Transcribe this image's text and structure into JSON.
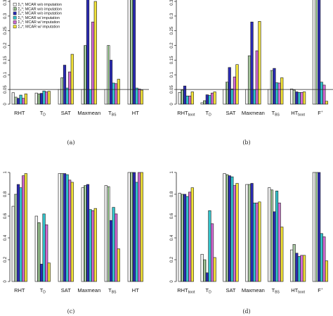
{
  "colors": {
    "axis": "#222222",
    "bar_outline": "#1a1a1a",
    "reference_line": "#222222"
  },
  "legend": {
    "items": [
      {
        "label": "Σ₁*; MCAR w/o imputation",
        "color": "#f4f4f4",
        "pattern": "plain"
      },
      {
        "label": "Σ₁*; MCAR w/o imputation",
        "color": "#4a8a3c",
        "pattern": "stripes"
      },
      {
        "label": "Σ₁*; MCAR w/o imputation",
        "color": "#2b2bb5",
        "pattern": "plain"
      },
      {
        "label": "Σ₁*; MCAR w/ imputation",
        "color": "#33c4cc",
        "pattern": "plain"
      },
      {
        "label": "Σ₂*; MCAR w/ imputation",
        "color": "#d26ad4",
        "pattern": "plain"
      },
      {
        "label": "Σ₃*; MCAR w/ imputation",
        "color": "#f2e33a",
        "pattern": "plain"
      }
    ]
  },
  "chart_data": [
    {
      "panel": "(a)",
      "type": "bar",
      "categories": [
        {
          "main": "RHT",
          "sub": "",
          "sup": ""
        },
        {
          "main": "T",
          "sub": "D",
          "sup": ""
        },
        {
          "main": "SAT",
          "sub": "",
          "sup": ""
        },
        {
          "main": "Maxmean",
          "sub": "",
          "sup": ""
        },
        {
          "main": "T",
          "sub": "BS",
          "sup": ""
        },
        {
          "main": "HT",
          "sub": "",
          "sup": ""
        }
      ],
      "values": [
        [
          0.039,
          0.024,
          0.02,
          0.031,
          0.02,
          0.035
        ],
        [
          0.038,
          0.035,
          0.037,
          0.045,
          0.042,
          0.044
        ],
        [
          0.05,
          0.09,
          0.133,
          0.055,
          0.11,
          0.17
        ],
        [
          0.05,
          0.2,
          0.36,
          0.05,
          0.28,
          0.35
        ],
        [
          0.05,
          0.2,
          0.15,
          0.072,
          0.07,
          0.085
        ],
        [
          0.36,
          0.36,
          0.36,
          0.055,
          0.052,
          0.048
        ]
      ],
      "yticks": [
        "0",
        "0.05",
        "0.1",
        "0.15",
        "0.2",
        "0.25",
        "0.3",
        "0.35"
      ],
      "ylim": [
        0,
        0.36
      ],
      "reference_line": 0.05,
      "show_legend": true
    },
    {
      "panel": "(b)",
      "type": "bar",
      "categories": [
        {
          "main": "RHT",
          "sub": "boot",
          "sup": ""
        },
        {
          "main": "T",
          "sub": "D",
          "sup": ""
        },
        {
          "main": "SAT",
          "sub": "",
          "sup": ""
        },
        {
          "main": "Maxmean",
          "sub": "",
          "sup": ""
        },
        {
          "main": "T",
          "sub": "BS",
          "sup": ""
        },
        {
          "main": "HT",
          "sub": "boot",
          "sup": ""
        },
        {
          "main": "F",
          "sub": "",
          "sup": "+"
        }
      ],
      "values": [
        [
          0.04,
          0.048,
          0.062,
          0.028,
          0.028,
          0.042
        ],
        [
          0.005,
          0.012,
          0.032,
          0.03,
          0.038,
          0.042
        ],
        [
          0.05,
          0.075,
          0.125,
          0.052,
          0.093,
          0.135
        ],
        [
          0.05,
          0.165,
          0.28,
          0.05,
          0.182,
          0.282
        ],
        [
          0.05,
          0.115,
          0.122,
          0.073,
          0.072,
          0.09
        ],
        [
          0.052,
          0.048,
          0.042,
          0.04,
          0.04,
          0.042
        ],
        [
          0.37,
          0.37,
          0.37,
          0.075,
          0.065,
          0.01
        ]
      ],
      "yticks": [
        "0",
        "0.05",
        "0.1",
        "0.15",
        "0.2",
        "0.25",
        "0.3",
        "0.35"
      ],
      "ylim": [
        0,
        0.36
      ],
      "reference_line": 0.05,
      "show_legend": false
    },
    {
      "panel": "(c)",
      "type": "bar",
      "categories": [
        {
          "main": "RHT",
          "sub": "",
          "sup": ""
        },
        {
          "main": "T",
          "sub": "D",
          "sup": ""
        },
        {
          "main": "SAT",
          "sub": "",
          "sup": ""
        },
        {
          "main": "Maxmean",
          "sub": "",
          "sup": ""
        },
        {
          "main": "T",
          "sub": "BS",
          "sup": ""
        },
        {
          "main": "HT",
          "sub": "",
          "sup": ""
        }
      ],
      "values": [
        [
          0.69,
          0.8,
          0.89,
          0.86,
          0.97,
          0.99
        ],
        [
          0.6,
          0.54,
          0.16,
          0.62,
          0.52,
          0.17
        ],
        [
          0.99,
          0.99,
          0.99,
          0.98,
          0.93,
          0.91
        ],
        [
          0.86,
          0.88,
          0.89,
          0.66,
          0.65,
          0.67
        ],
        [
          0.88,
          0.87,
          0.56,
          0.68,
          0.62,
          0.3
        ],
        [
          1.0,
          1.0,
          1.0,
          0.91,
          1.0,
          1.0
        ]
      ],
      "yticks": [
        "0",
        "0.2",
        "0.4",
        "0.6",
        "0.8",
        "1"
      ],
      "ylim": [
        0,
        1
      ],
      "reference_line": null,
      "show_legend": false
    },
    {
      "panel": "(d)",
      "type": "bar",
      "categories": [
        {
          "main": "RHT",
          "sub": "boot",
          "sup": ""
        },
        {
          "main": "T",
          "sub": "D",
          "sup": ""
        },
        {
          "main": "SAT",
          "sub": "",
          "sup": ""
        },
        {
          "main": "Maxmean",
          "sub": "",
          "sup": ""
        },
        {
          "main": "T",
          "sub": "BS",
          "sup": ""
        },
        {
          "main": "HT",
          "sub": "boot",
          "sup": ""
        },
        {
          "main": "F",
          "sub": "",
          "sup": "+"
        }
      ],
      "values": [
        [
          0.81,
          0.8,
          0.8,
          0.78,
          0.82,
          0.86
        ],
        [
          0.25,
          0.2,
          0.08,
          0.65,
          0.53,
          0.22
        ],
        [
          0.99,
          0.98,
          0.97,
          0.96,
          0.88,
          0.9
        ],
        [
          0.89,
          0.89,
          0.9,
          0.72,
          0.72,
          0.73
        ],
        [
          0.86,
          0.84,
          0.64,
          0.83,
          0.72,
          0.5
        ],
        [
          0.29,
          0.34,
          0.26,
          0.23,
          0.24,
          0.24
        ],
        [
          1.0,
          1.0,
          1.0,
          0.44,
          0.41,
          0.19
        ]
      ],
      "yticks": [
        "0",
        "0.2",
        "0.4",
        "0.6",
        "0.8",
        "1"
      ],
      "ylim": [
        0,
        1
      ],
      "reference_line": null,
      "show_legend": false
    }
  ]
}
